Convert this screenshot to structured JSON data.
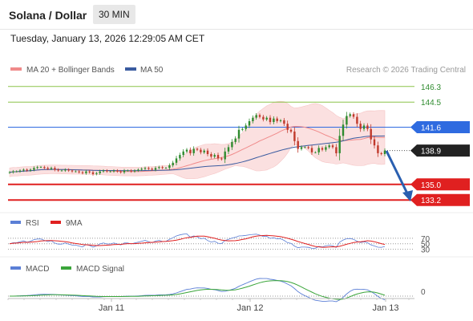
{
  "header": {
    "title": "Solana / Dollar",
    "timeframe": "30 MIN"
  },
  "timestamp": "Tuesday, January 13, 2026 12:29:05 AM CET",
  "legend": {
    "ma20_label": "MA 20 + Bollinger Bands",
    "ma50_label": "MA 50",
    "copyright": "Research © 2026 Trading Central"
  },
  "colors": {
    "up": "#2e8b2e",
    "down": "#c0392b",
    "ma20": "#f08a8a",
    "ma50": "#3a5ba0",
    "band": "#fbe0e0",
    "resistance_green": "#8bc34a",
    "pivot_blue": "#2f6be0",
    "support_red": "#e02020",
    "rsi": "#5b7fd6",
    "rsi_ma": "#e02020",
    "macd": "#5b7fd6",
    "macd_signal": "#3aa53a",
    "arrow": "#2a5fb0"
  },
  "chart_data": [
    {
      "type": "candlestick",
      "title": "Solana / Dollar",
      "x_ticks": [
        "Jan 11",
        "Jan 12",
        "Jan 13"
      ],
      "ylim": [
        132.2,
        147.3
      ],
      "levels": [
        {
          "value": 146.3,
          "label": "146.3",
          "kind": "resistance"
        },
        {
          "value": 144.5,
          "label": "144.5",
          "kind": "resistance"
        },
        {
          "value": 141.6,
          "label": "141.6",
          "kind": "pivot"
        },
        {
          "value": 138.9,
          "label": "138.9",
          "kind": "last"
        },
        {
          "value": 135.0,
          "label": "135.0",
          "kind": "support"
        },
        {
          "value": 133.2,
          "label": "133.2",
          "kind": "support"
        }
      ],
      "series": [
        {
          "name": "MA 20 + Bollinger Bands"
        },
        {
          "name": "MA 50"
        }
      ],
      "close": [
        136.4,
        136.5,
        136.5,
        136.6,
        136.7,
        136.6,
        136.7,
        136.9,
        137.0,
        137.0,
        136.9,
        136.8,
        136.9,
        136.7,
        136.6,
        136.6,
        136.7,
        136.6,
        136.5,
        136.5,
        136.4,
        136.3,
        136.5,
        136.4,
        136.2,
        136.3,
        136.5,
        136.6,
        136.5,
        136.5,
        136.6,
        136.5,
        136.4,
        136.6,
        136.6,
        136.5,
        136.6,
        136.7,
        136.8,
        136.9,
        136.8,
        136.7,
        136.9,
        137.0,
        136.9,
        136.9,
        137.2,
        137.5,
        138.0,
        138.4,
        138.8,
        139.0,
        138.6,
        139.1,
        139.0,
        138.7,
        138.9,
        138.5,
        138.2,
        138.4,
        138.0,
        137.9,
        138.8,
        139.3,
        139.9,
        140.3,
        141.3,
        141.4,
        141.8,
        142.3,
        142.7,
        143.0,
        142.8,
        142.5,
        142.7,
        142.2,
        142.6,
        142.3,
        142.4,
        142.0,
        141.3,
        141.1,
        140.0,
        139.1,
        139.3,
        139.3,
        139.2,
        138.7,
        138.7,
        139.2,
        139.0,
        139.3,
        139.5,
        139.3,
        138.6,
        140.6,
        141.9,
        142.9,
        143.1,
        142.8,
        142.0,
        141.4,
        141.8,
        141.4,
        140.2,
        139.5,
        138.6,
        138.5,
        138.9
      ],
      "x_step_minutes": 30
    },
    {
      "type": "line",
      "title": "RSI",
      "levels": [
        70,
        50,
        30
      ],
      "series": [
        {
          "name": "RSI"
        },
        {
          "name": "9MA"
        }
      ],
      "note": "values derived from price series"
    },
    {
      "type": "line",
      "title": "MACD",
      "levels": [
        0
      ],
      "series": [
        {
          "name": "MACD"
        },
        {
          "name": "MACD Signal"
        }
      ],
      "note": "values derived from price series"
    }
  ],
  "indicators": {
    "rsi_label": "RSI",
    "rsi_ma_label": "9MA",
    "rsi_levels": [
      "70",
      "50",
      "30"
    ],
    "macd_label": "MACD",
    "macd_signal_label": "MACD Signal",
    "macd_zero": "0"
  }
}
